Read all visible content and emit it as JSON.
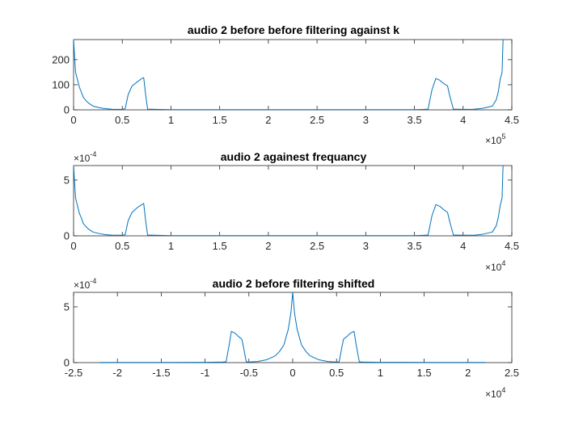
{
  "figure_bg": "#ffffff",
  "axes_bg": "#ffffff",
  "axis_color": "#262626",
  "line_color": "#0072BD",
  "chart_data": [
    {
      "type": "line",
      "title": "audio 2 before before filtering against k",
      "xlim": [
        0,
        4.5
      ],
      "ylim": [
        0,
        280
      ],
      "xticks": [
        0,
        0.5,
        1,
        1.5,
        2,
        2.5,
        3,
        3.5,
        4,
        4.5
      ],
      "xtick_labels": [
        "0",
        "0.5",
        "1",
        "1.5",
        "2",
        "2.5",
        "3",
        "3.5",
        "4",
        "4.5"
      ],
      "yticks": [
        0,
        100,
        200
      ],
      "ytick_labels": [
        "0",
        "100",
        "200"
      ],
      "x_exponent_base": "×10",
      "x_exponent_power": "5",
      "y_exponent_base": "",
      "y_exponent_power": "",
      "series": [
        {
          "x": [
            0,
            0.02,
            0.04,
            0.06,
            0.08,
            0.1,
            0.13,
            0.16,
            0.2,
            0.25,
            0.3,
            0.35,
            0.4,
            0.5,
            0.53,
            0.56,
            0.6,
            0.65,
            0.7,
            0.72,
            0.74,
            0.76,
            1.0,
            1.5,
            2.0,
            2.5,
            3.0,
            3.5,
            3.6,
            3.64,
            3.68,
            3.72,
            3.76,
            3.8,
            3.84,
            3.86,
            3.9,
            4.0,
            4.1,
            4.2,
            4.3,
            4.34,
            4.36,
            4.38,
            4.4,
            4.41
          ],
          "y": [
            280,
            150,
            120,
            90,
            70,
            50,
            35,
            25,
            15,
            10,
            6,
            4,
            2,
            2,
            5,
            60,
            95,
            110,
            125,
            128,
            60,
            3,
            1,
            1,
            1,
            1,
            1,
            1,
            2,
            3,
            80,
            125,
            118,
            105,
            95,
            60,
            3,
            2,
            2,
            6,
            15,
            40,
            70,
            120,
            150,
            280
          ]
        }
      ]
    },
    {
      "type": "line",
      "title": "audio 2 againest frequancy",
      "xlim": [
        0,
        4.5
      ],
      "ylim": [
        0,
        6.3
      ],
      "xticks": [
        0,
        0.5,
        1,
        1.5,
        2,
        2.5,
        3,
        3.5,
        4,
        4.5
      ],
      "xtick_labels": [
        "0",
        "0.5",
        "1",
        "1.5",
        "2",
        "2.5",
        "3",
        "3.5",
        "4",
        "4.5"
      ],
      "yticks": [
        0,
        5
      ],
      "ytick_labels": [
        "0",
        "5"
      ],
      "x_exponent_base": "×10",
      "x_exponent_power": "4",
      "y_exponent_base": "×10",
      "y_exponent_power": "-4",
      "series": [
        {
          "x": [
            0,
            0.02,
            0.04,
            0.06,
            0.08,
            0.1,
            0.13,
            0.16,
            0.2,
            0.25,
            0.3,
            0.35,
            0.4,
            0.5,
            0.53,
            0.56,
            0.6,
            0.65,
            0.7,
            0.72,
            0.74,
            0.76,
            1.0,
            1.5,
            2.0,
            2.5,
            3.0,
            3.5,
            3.6,
            3.64,
            3.68,
            3.72,
            3.76,
            3.8,
            3.84,
            3.86,
            3.9,
            4.0,
            4.1,
            4.2,
            4.3,
            4.34,
            4.36,
            4.38,
            4.4,
            4.41
          ],
          "y": [
            6.3,
            3.4,
            2.7,
            2.0,
            1.6,
            1.1,
            0.8,
            0.56,
            0.34,
            0.23,
            0.14,
            0.09,
            0.05,
            0.05,
            0.11,
            1.35,
            2.1,
            2.5,
            2.8,
            2.9,
            1.35,
            0.07,
            0.02,
            0.02,
            0.02,
            0.02,
            0.02,
            0.02,
            0.05,
            0.07,
            1.8,
            2.8,
            2.65,
            2.35,
            2.1,
            1.35,
            0.07,
            0.05,
            0.05,
            0.14,
            0.34,
            0.9,
            1.6,
            2.7,
            3.4,
            6.3
          ]
        }
      ]
    },
    {
      "type": "line",
      "title": "audio 2 before filtering shifted",
      "xlim": [
        -2.5,
        2.5
      ],
      "ylim": [
        0,
        6.3
      ],
      "xticks": [
        -2.5,
        -2,
        -1.5,
        -1,
        -0.5,
        0,
        0.5,
        1,
        1.5,
        2,
        2.5
      ],
      "xtick_labels": [
        "-2.5",
        "-2",
        "-1.5",
        "-1",
        "-0.5",
        "0",
        "0.5",
        "1",
        "1.5",
        "2",
        "2.5"
      ],
      "yticks": [
        0,
        5
      ],
      "ytick_labels": [
        "0",
        "5"
      ],
      "x_exponent_base": "×10",
      "x_exponent_power": "4",
      "y_exponent_base": "×10",
      "y_exponent_power": "-4",
      "series": [
        {
          "x": [
            -2.2,
            -1.5,
            -1.0,
            -0.8,
            -0.76,
            -0.72,
            -0.7,
            -0.66,
            -0.62,
            -0.58,
            -0.56,
            -0.53,
            -0.5,
            -0.4,
            -0.3,
            -0.2,
            -0.15,
            -0.1,
            -0.05,
            -0.02,
            0,
            0.02,
            0.05,
            0.1,
            0.15,
            0.2,
            0.3,
            0.4,
            0.5,
            0.53,
            0.56,
            0.58,
            0.62,
            0.66,
            0.7,
            0.72,
            0.76,
            0.8,
            1.0,
            1.5,
            2.2
          ],
          "y": [
            0.02,
            0.02,
            0.03,
            0.05,
            0.07,
            1.8,
            2.8,
            2.65,
            2.35,
            2.1,
            1.35,
            0.07,
            0.05,
            0.1,
            0.25,
            0.6,
            1.0,
            1.6,
            3.0,
            4.5,
            6.3,
            4.5,
            3.0,
            1.6,
            1.0,
            0.6,
            0.25,
            0.1,
            0.05,
            0.07,
            1.35,
            2.1,
            2.35,
            2.65,
            2.8,
            1.8,
            0.07,
            0.05,
            0.03,
            0.02,
            0.02
          ]
        }
      ]
    }
  ]
}
